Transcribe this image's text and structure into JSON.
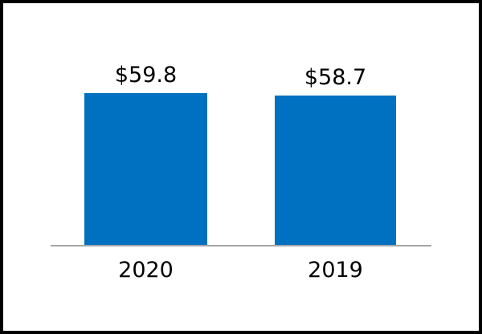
{
  "chart_data": {
    "type": "bar",
    "categories": [
      "2020",
      "2019"
    ],
    "values": [
      59.8,
      58.7
    ],
    "value_labels": [
      "$59.8",
      "$58.7"
    ],
    "title": "",
    "xlabel": "",
    "ylabel": "",
    "ylim": [
      0,
      59.8
    ],
    "grid": false,
    "legend": false,
    "bar_color": "#0070C0",
    "axis_line_color": "#A6A6A6",
    "text_color": "#000000",
    "frame_border_color": "#000000",
    "background_color": "#FFFFFF"
  }
}
